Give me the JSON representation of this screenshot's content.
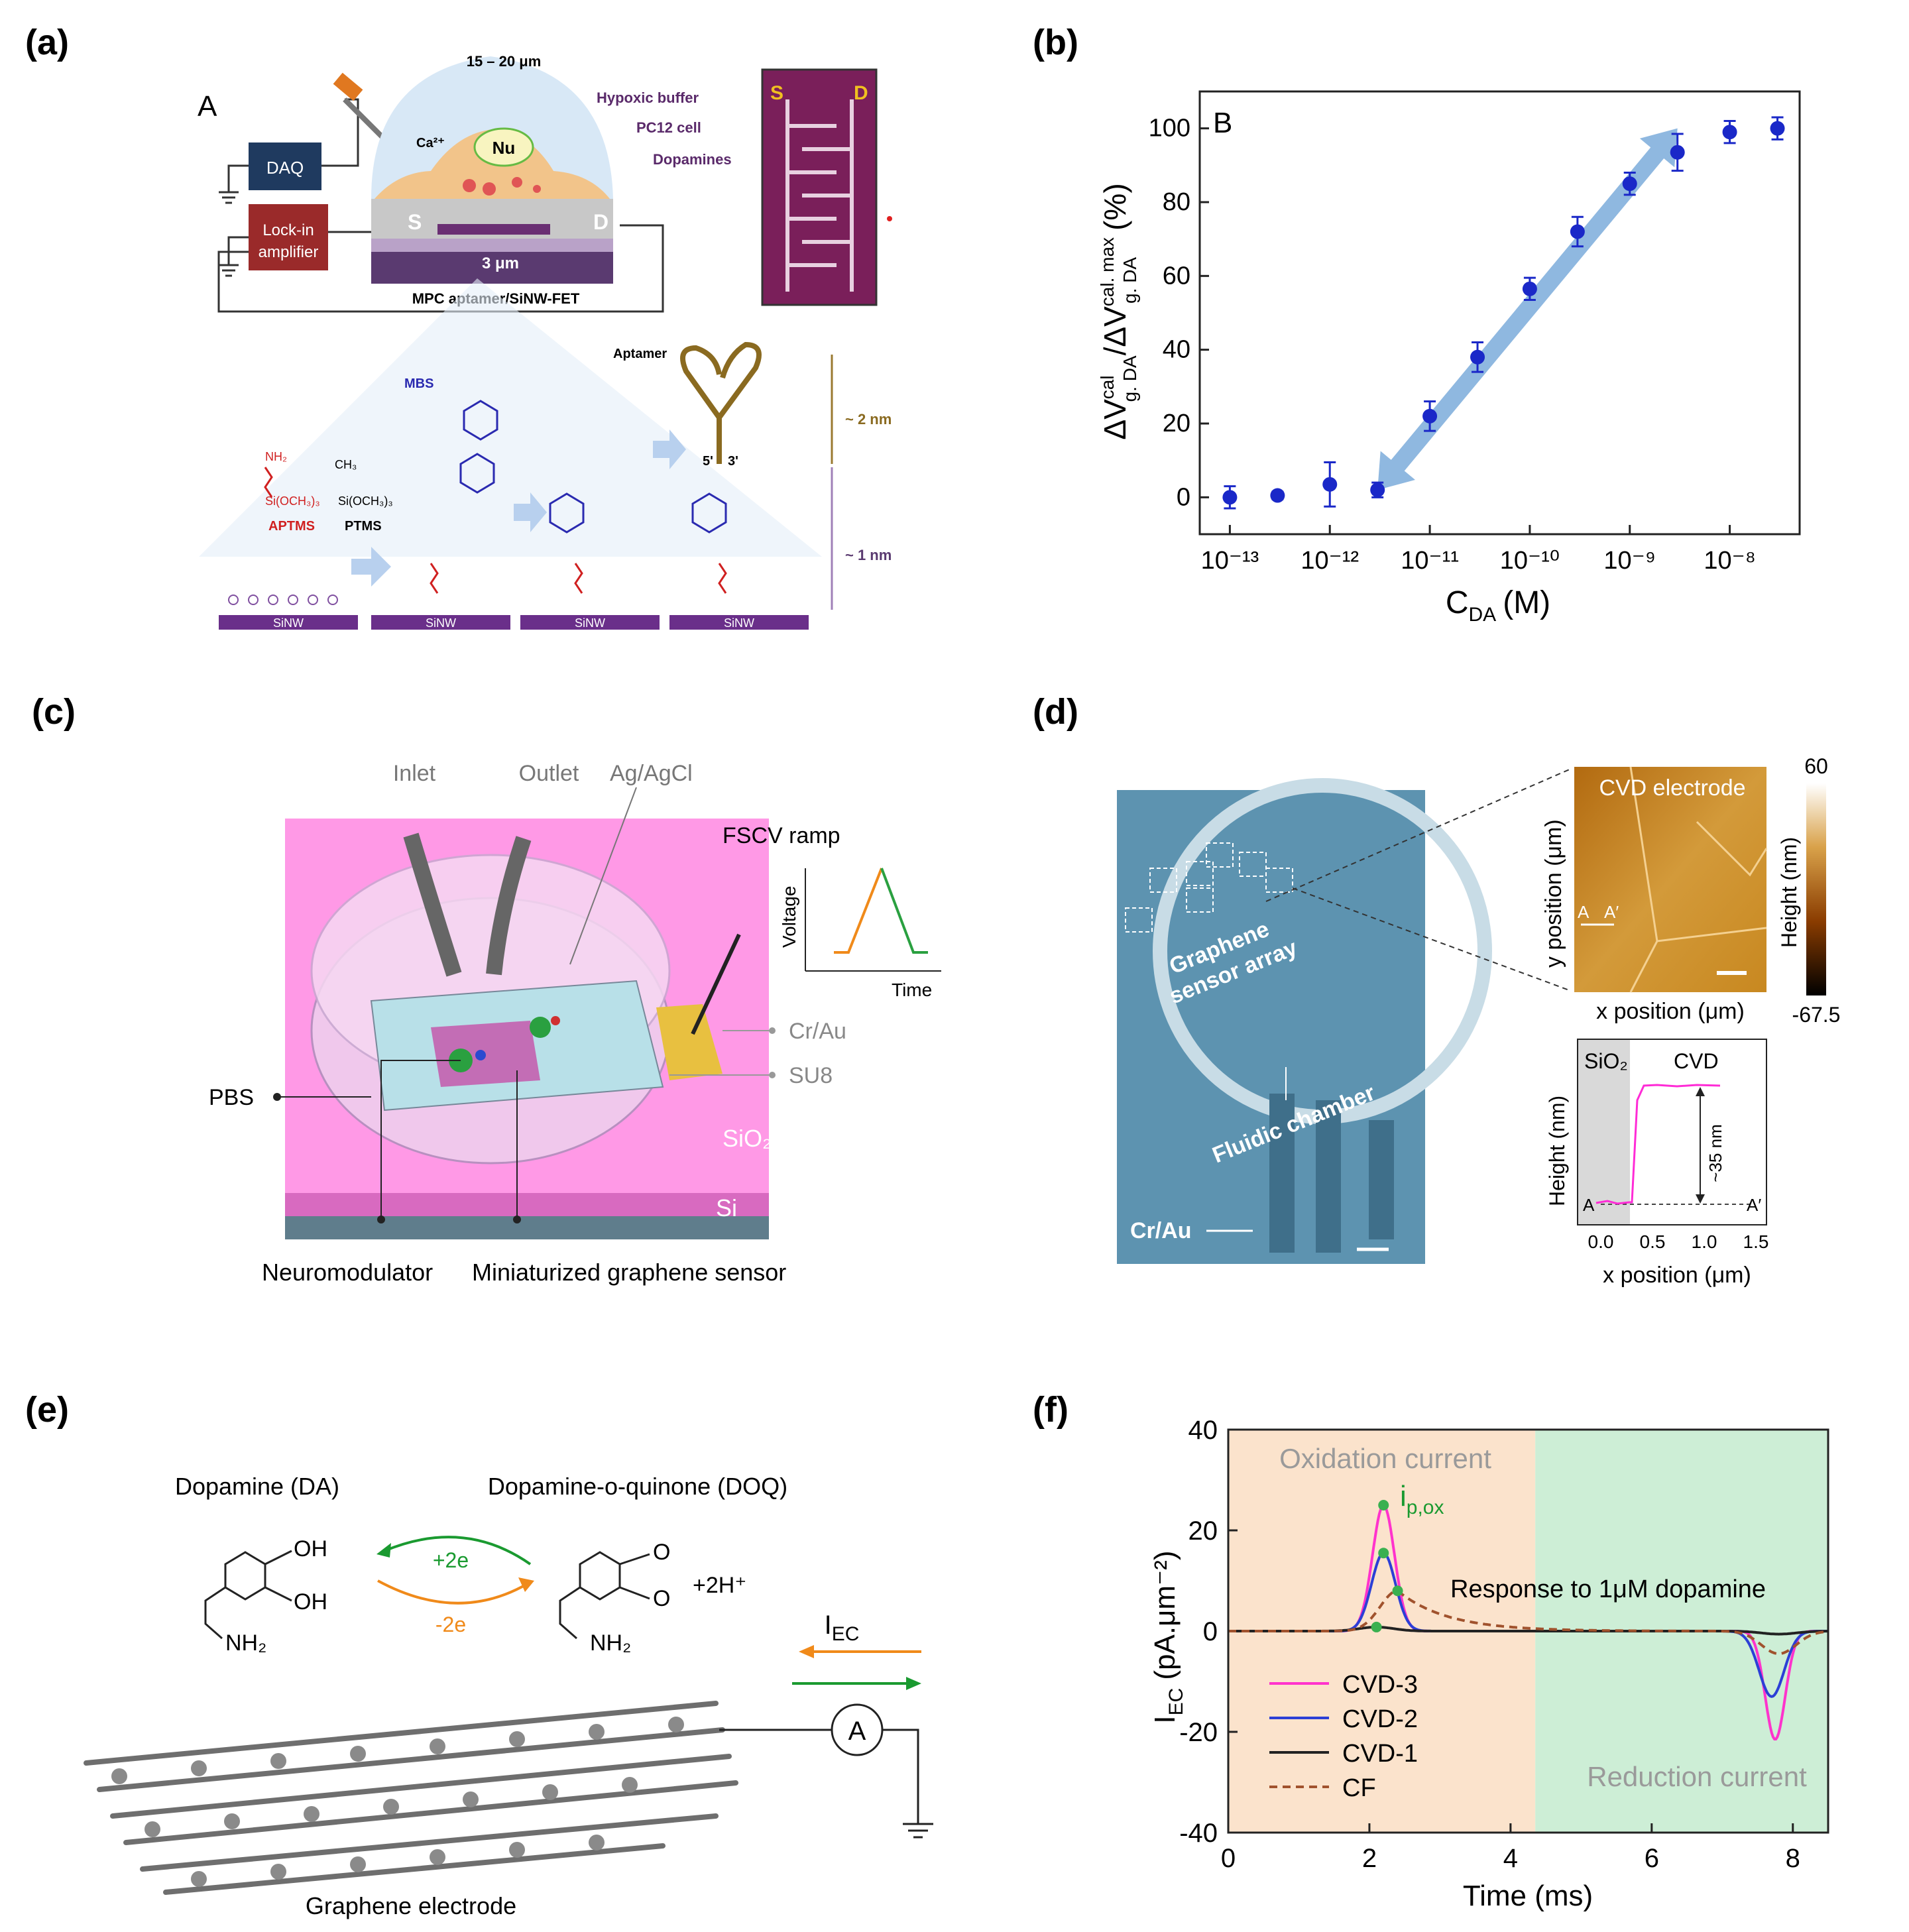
{
  "panels": {
    "a": {
      "label": "(a)",
      "sub_label": "A",
      "daq": "DAQ",
      "lockin_1": "Lock-in",
      "lockin_2": "amplifier",
      "width": "15 – 20 μm",
      "hypoxic": "Hypoxic buffer",
      "pc12": "PC12 cell",
      "dopamines": "Dopamines",
      "ca": "Ca²⁺",
      "nu": "Nu",
      "s": "S",
      "d": "D",
      "gap": "3 μm",
      "device": "MPC aptamer/SiNW-FET",
      "sem_s": "S",
      "sem_d": "D",
      "aptamer": "Aptamer",
      "mbs": "MBS",
      "nm2": "~ 2 nm",
      "nm1": "~ 1 nm",
      "aptms": "APTMS",
      "ptms": "PTMS",
      "nh2": "NH₂",
      "ch3": "CH₃",
      "si_och3": "Si(OCH₃)₃",
      "sinw": "SiNW",
      "five": "5'",
      "three": "3'"
    },
    "b": {
      "label": "(b)",
      "sub_label": "B",
      "ylabel": "ΔV cal g.DA / ΔV cal.max g.DA (%)",
      "ylabel_main": "ΔV",
      "ylabel_sup": "cal",
      "ylabel_sub": "g. DA",
      "ylabel_slash": "/ΔV",
      "ylabel_sup2": "cal. max",
      "ylabel_sub2": "g. DA",
      "ylabel_pct": "(%)",
      "xlabel_main": "C",
      "xlabel_sub": "DA",
      "xlabel_unit": "(M)"
    },
    "c": {
      "label": "(c)",
      "inlet": "Inlet",
      "outlet": "Outlet",
      "agagcl": "Ag/AgCl",
      "fscv": "FSCV ramp",
      "voltage": "Voltage",
      "time": "Time",
      "crau": "Cr/Au",
      "su8": "SU8",
      "pbs": "PBS",
      "sio2": "SiO₂",
      "si": "Si",
      "neuromod": "Neuromodulator",
      "mini": "Miniaturized graphene sensor"
    },
    "d": {
      "label": "(d)",
      "array1": "Graphene",
      "array2": "sensor array",
      "fluidic": "Fluidic chamber",
      "crau": "Cr/Au",
      "cvd_electrode": "CVD electrode",
      "ypos": "y position (μm)",
      "xpos": "x position (μm)",
      "height": "Height (nm)",
      "cbar_max": "60",
      "cbar_min": "-67.5",
      "a": "A",
      "a_prime": "A′",
      "sio2": "SiO₂",
      "cvd": "CVD",
      "step": "~35 nm",
      "ticks": [
        "0.0",
        "0.5",
        "1.0",
        "1.5"
      ]
    },
    "e": {
      "label": "(e)",
      "da": "Dopamine (DA)",
      "doq": "Dopamine-o-quinone (DOQ)",
      "oh": "OH",
      "o": "O",
      "nh2": "NH₂",
      "plus2e": "+2e",
      "minus2e": "-2e",
      "h": "+2H⁺",
      "iec": "I",
      "iec_sub": "EC",
      "amp": "A",
      "electrode": "Graphene electrode"
    },
    "f": {
      "label": "(f)",
      "oxidation": "Oxidation current",
      "reduction": "Reduction current",
      "ipox": "i",
      "ipox_sub": "p,ox",
      "response": "Response to 1μM dopamine",
      "ylabel_main": "I",
      "ylabel_sub": "EC",
      "ylabel_unit": "(pA.μm⁻²)",
      "xlabel": "Time (ms)"
    }
  },
  "chart_data": [
    {
      "type": "scatter",
      "panel": "b",
      "title": "B",
      "xlabel": "C_DA (M)",
      "ylabel": "ΔV^cal_g.DA / ΔV^cal.max_g.DA (%)",
      "xscale": "log",
      "xlim": [
        5e-14,
        5e-08
      ],
      "ylim": [
        -10,
        110
      ],
      "xticks": [
        "10⁻¹³",
        "10⁻¹²",
        "10⁻¹¹",
        "10⁻¹⁰",
        "10⁻⁹",
        "10⁻⁸"
      ],
      "yticks": [
        "0",
        "20",
        "40",
        "60",
        "80",
        "100"
      ],
      "points": [
        {
          "x": 1e-13,
          "y": 0,
          "err": 3
        },
        {
          "x": 3e-13,
          "y": 0.5,
          "err": 1
        },
        {
          "x": 1e-12,
          "y": 3.5,
          "err": 6
        },
        {
          "x": 3e-12,
          "y": 2,
          "err": 2
        },
        {
          "x": 1e-11,
          "y": 22,
          "err": 4
        },
        {
          "x": 3e-11,
          "y": 38,
          "err": 4
        },
        {
          "x": 1e-10,
          "y": 56.5,
          "err": 3
        },
        {
          "x": 3e-10,
          "y": 72,
          "err": 4
        },
        {
          "x": 1e-09,
          "y": 85,
          "err": 3
        },
        {
          "x": 3e-09,
          "y": 93.5,
          "err": 5
        },
        {
          "x": 1e-08,
          "y": 99,
          "err": 3
        },
        {
          "x": 3e-08,
          "y": 100,
          "err": 3
        }
      ],
      "linear_range": [
        3e-12,
        3e-09
      ]
    },
    {
      "type": "line",
      "panel": "f",
      "xlabel": "Time (ms)",
      "ylabel": "I_EC (pA.μm⁻²)",
      "xlim": [
        0,
        8.5
      ],
      "ylim": [
        -40,
        40
      ],
      "xticks": [
        "0",
        "2",
        "4",
        "6",
        "8"
      ],
      "yticks": [
        "-40",
        "-20",
        "0",
        "20",
        "40"
      ],
      "regions": [
        {
          "name": "Oxidation current",
          "from": 0,
          "to": 4.35,
          "color": "#fbe3cc"
        },
        {
          "name": "Reduction current",
          "from": 4.35,
          "to": 8.5,
          "color": "#cdeed6"
        }
      ],
      "series": [
        {
          "name": "CVD-3",
          "color": "#ff33cc",
          "dash": false,
          "peak_ox": {
            "t": 2.2,
            "v": 25,
            "w": 0.22
          },
          "peak_red": {
            "t": 7.75,
            "v": -21.5,
            "w": 0.2
          }
        },
        {
          "name": "CVD-2",
          "color": "#2c3fd6",
          "dash": false,
          "peak_ox": {
            "t": 2.2,
            "v": 15.5,
            "w": 0.24
          },
          "peak_red": {
            "t": 7.7,
            "v": -13,
            "w": 0.25
          }
        },
        {
          "name": "CVD-1",
          "color": "#222222",
          "dash": false,
          "peak_ox": {
            "t": 2.1,
            "v": 0.8,
            "w": 0.35
          },
          "peak_red": {
            "t": 7.8,
            "v": -0.6,
            "w": 0.35
          }
        },
        {
          "name": "CF",
          "color": "#a0522d",
          "dash": true,
          "peak_ox": {
            "t": 2.4,
            "v": 8,
            "w": 0.35
          },
          "peak_red": {
            "t": 7.8,
            "v": -4.5,
            "w": 0.35
          }
        }
      ],
      "legend": "bottom-left"
    }
  ]
}
